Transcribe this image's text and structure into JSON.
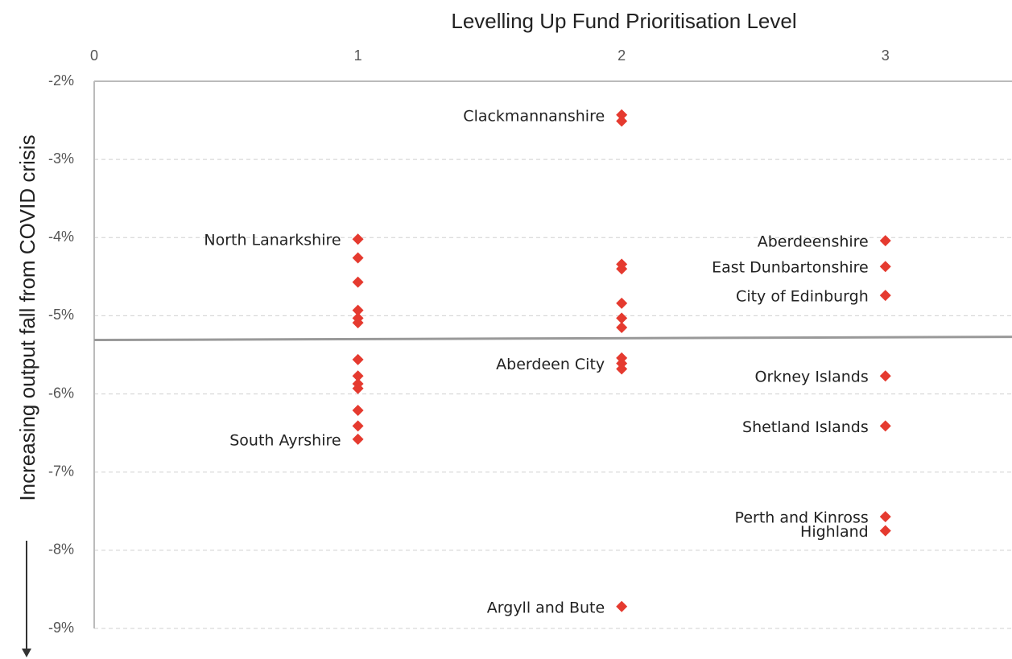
{
  "chart_data": {
    "type": "scatter",
    "x_label": "Levelling Up Fund Prioritisation Level",
    "y_label": "Increasing output fall from COVID crisis",
    "xlim": [
      0,
      3.48
    ],
    "xticks": [
      0,
      1,
      2,
      3
    ],
    "ylim": [
      -9,
      -2
    ],
    "yticks": [
      {
        "value": -2,
        "label": "-2%"
      },
      {
        "value": -3,
        "label": "-3%"
      },
      {
        "value": -4,
        "label": "-4%"
      },
      {
        "value": -5,
        "label": "-5%"
      },
      {
        "value": -6,
        "label": "-6%"
      },
      {
        "value": -7,
        "label": "-7%"
      },
      {
        "value": -8,
        "label": "-8%"
      },
      {
        "value": -9,
        "label": "-9%"
      }
    ],
    "grid": true,
    "series": [
      {
        "color": "#e53a2f",
        "x": [
          1,
          1,
          1,
          1,
          1,
          1,
          1,
          1,
          1,
          1,
          1,
          1,
          1,
          2,
          2,
          2,
          2,
          2,
          2,
          2,
          2,
          2,
          2,
          2,
          3,
          3,
          3,
          3,
          3,
          3,
          3
        ],
        "y": [
          -4.02,
          -4.26,
          -4.57,
          -4.93,
          -5.03,
          -5.09,
          -5.56,
          -5.77,
          -5.87,
          -5.93,
          -6.21,
          -6.41,
          -6.58,
          -2.43,
          -2.51,
          -4.34,
          -4.4,
          -4.84,
          -5.03,
          -5.15,
          -5.54,
          -5.61,
          -5.68,
          -8.72,
          -4.04,
          -4.37,
          -4.74,
          -5.77,
          -6.41,
          -7.57,
          -7.75
        ],
        "labels": [
          "North Lanarkshire",
          null,
          null,
          null,
          null,
          null,
          null,
          null,
          null,
          null,
          null,
          null,
          "South Ayrshire",
          "Clackmannanshire",
          null,
          null,
          null,
          null,
          null,
          null,
          null,
          "Aberdeen City",
          null,
          "Argyll and Bute",
          "Aberdeenshire",
          "East Dunbartonshire",
          "City of Edinburgh",
          "Orkney Islands",
          "Shetland Islands",
          "Perth and Kinross",
          "Highland"
        ]
      }
    ],
    "reference_line": {
      "color": "#999999",
      "x": [
        0,
        3.48
      ],
      "y": [
        -5.31,
        -5.27
      ]
    }
  }
}
